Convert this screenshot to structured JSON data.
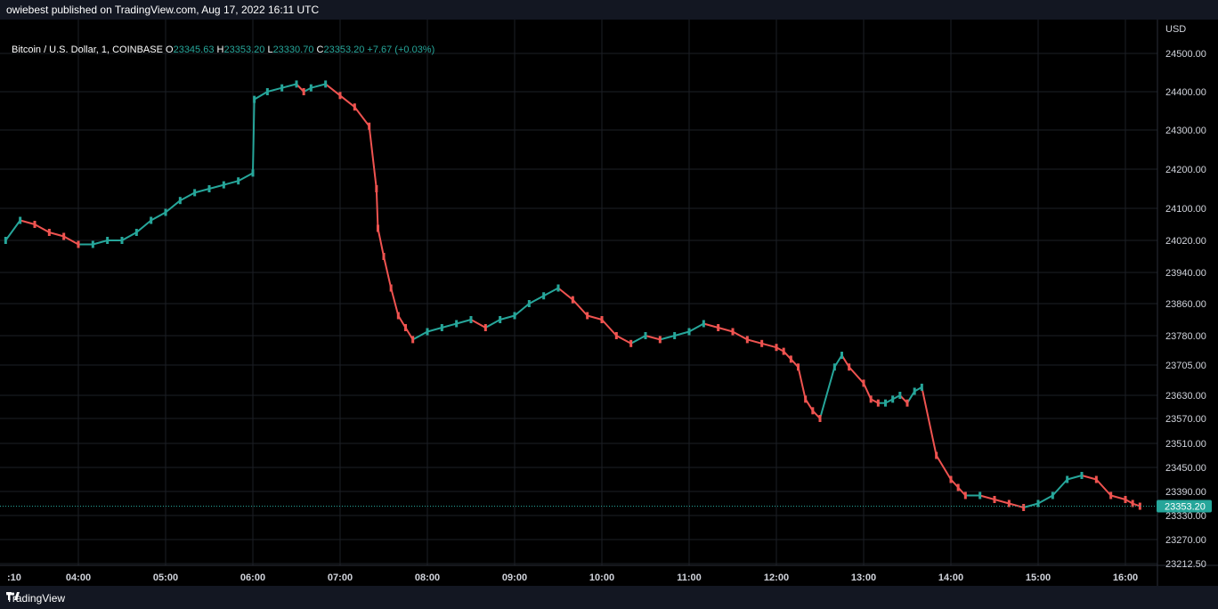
{
  "header": {
    "publisher_text": "owiebest published on TradingView.com, Aug 17, 2022 16:11 UTC"
  },
  "legend": {
    "symbol": "Bitcoin / U.S. Dollar, 1, COINBASE",
    "o_label": "O",
    "o_value": "23345.63",
    "h_label": "H",
    "h_value": "23353.20",
    "l_label": "L",
    "l_value": "23330.70",
    "c_label": "C",
    "c_value": "23353.20",
    "change": "+7.67 (+0.03%)"
  },
  "footer": {
    "brand": "TradingView",
    "logo_icon": "tradingview-logo-icon"
  },
  "colors": {
    "up": "#26a69a",
    "down": "#ef5350",
    "grid": "#1c1f26",
    "price_tag": "#26a69a"
  },
  "chart_data": {
    "type": "line",
    "title": "Bitcoin / U.S. Dollar, 1, COINBASE",
    "currency_label": "USD",
    "y_ticks": [
      "24500.00",
      "24400.00",
      "24300.00",
      "24200.00",
      "24100.00",
      "24020.00",
      "23940.00",
      "23860.00",
      "23780.00",
      "23705.00",
      "23630.00",
      "23570.00",
      "23510.00",
      "23450.00",
      "23390.00",
      "23330.00",
      "23270.00",
      "23212.50"
    ],
    "x_ticks": [
      ":10",
      "04:00",
      "05:00",
      "06:00",
      "07:00",
      "08:00",
      "09:00",
      "10:00",
      "11:00",
      "12:00",
      "13:00",
      "14:00",
      "15:00",
      "16:00"
    ],
    "last_price": "23353.20",
    "grid": true,
    "scale": "log-like (non-linear)",
    "series": [
      {
        "x": [
          "03:10",
          "03:20",
          "03:30",
          "03:40",
          "03:50",
          "04:00",
          "04:10",
          "04:20",
          "04:30",
          "04:40",
          "04:50",
          "05:00",
          "05:10",
          "05:20",
          "05:30",
          "05:40",
          "05:50",
          "06:00",
          "06:01",
          "06:10",
          "06:20",
          "06:30",
          "06:35",
          "06:40",
          "06:50",
          "07:00",
          "07:10",
          "07:20",
          "07:25",
          "07:26",
          "07:30",
          "07:35",
          "07:40",
          "07:45",
          "07:50",
          "08:00",
          "08:10",
          "08:20",
          "08:30",
          "08:40",
          "08:50",
          "09:00",
          "09:10",
          "09:20",
          "09:30",
          "09:40",
          "09:50",
          "10:00",
          "10:10",
          "10:20",
          "10:30",
          "10:40",
          "10:50",
          "11:00",
          "11:10",
          "11:20",
          "11:30",
          "11:40",
          "11:50",
          "12:00",
          "12:05",
          "12:10",
          "12:15",
          "12:20",
          "12:25",
          "12:30",
          "12:40",
          "12:45",
          "12:50",
          "13:00",
          "13:05",
          "13:10",
          "13:15",
          "13:20",
          "13:25",
          "13:30",
          "13:35",
          "13:40",
          "13:50",
          "14:00",
          "14:05",
          "14:10",
          "14:20",
          "14:30",
          "14:40",
          "14:50",
          "15:00",
          "15:10",
          "15:20",
          "15:30",
          "15:40",
          "15:50",
          "16:00",
          "16:05",
          "16:10"
        ],
        "y": [
          24020,
          24070,
          24060,
          24040,
          24030,
          24010,
          24010,
          24020,
          24020,
          24040,
          24070,
          24090,
          24120,
          24140,
          24150,
          24160,
          24170,
          24190,
          24380,
          24400,
          24410,
          24420,
          24400,
          24410,
          24420,
          24390,
          24360,
          24310,
          24150,
          24050,
          23980,
          23900,
          23830,
          23800,
          23770,
          23790,
          23800,
          23810,
          23820,
          23800,
          23820,
          23830,
          23860,
          23880,
          23900,
          23870,
          23830,
          23820,
          23780,
          23760,
          23780,
          23770,
          23780,
          23790,
          23810,
          23800,
          23790,
          23770,
          23760,
          23750,
          23740,
          23720,
          23700,
          23620,
          23590,
          23570,
          23700,
          23730,
          23700,
          23660,
          23620,
          23610,
          23610,
          23620,
          23630,
          23610,
          23640,
          23650,
          23480,
          23420,
          23400,
          23380,
          23380,
          23370,
          23360,
          23350,
          23360,
          23380,
          23420,
          23430,
          23420,
          23380,
          23370,
          23360,
          23353.2
        ]
      }
    ]
  }
}
